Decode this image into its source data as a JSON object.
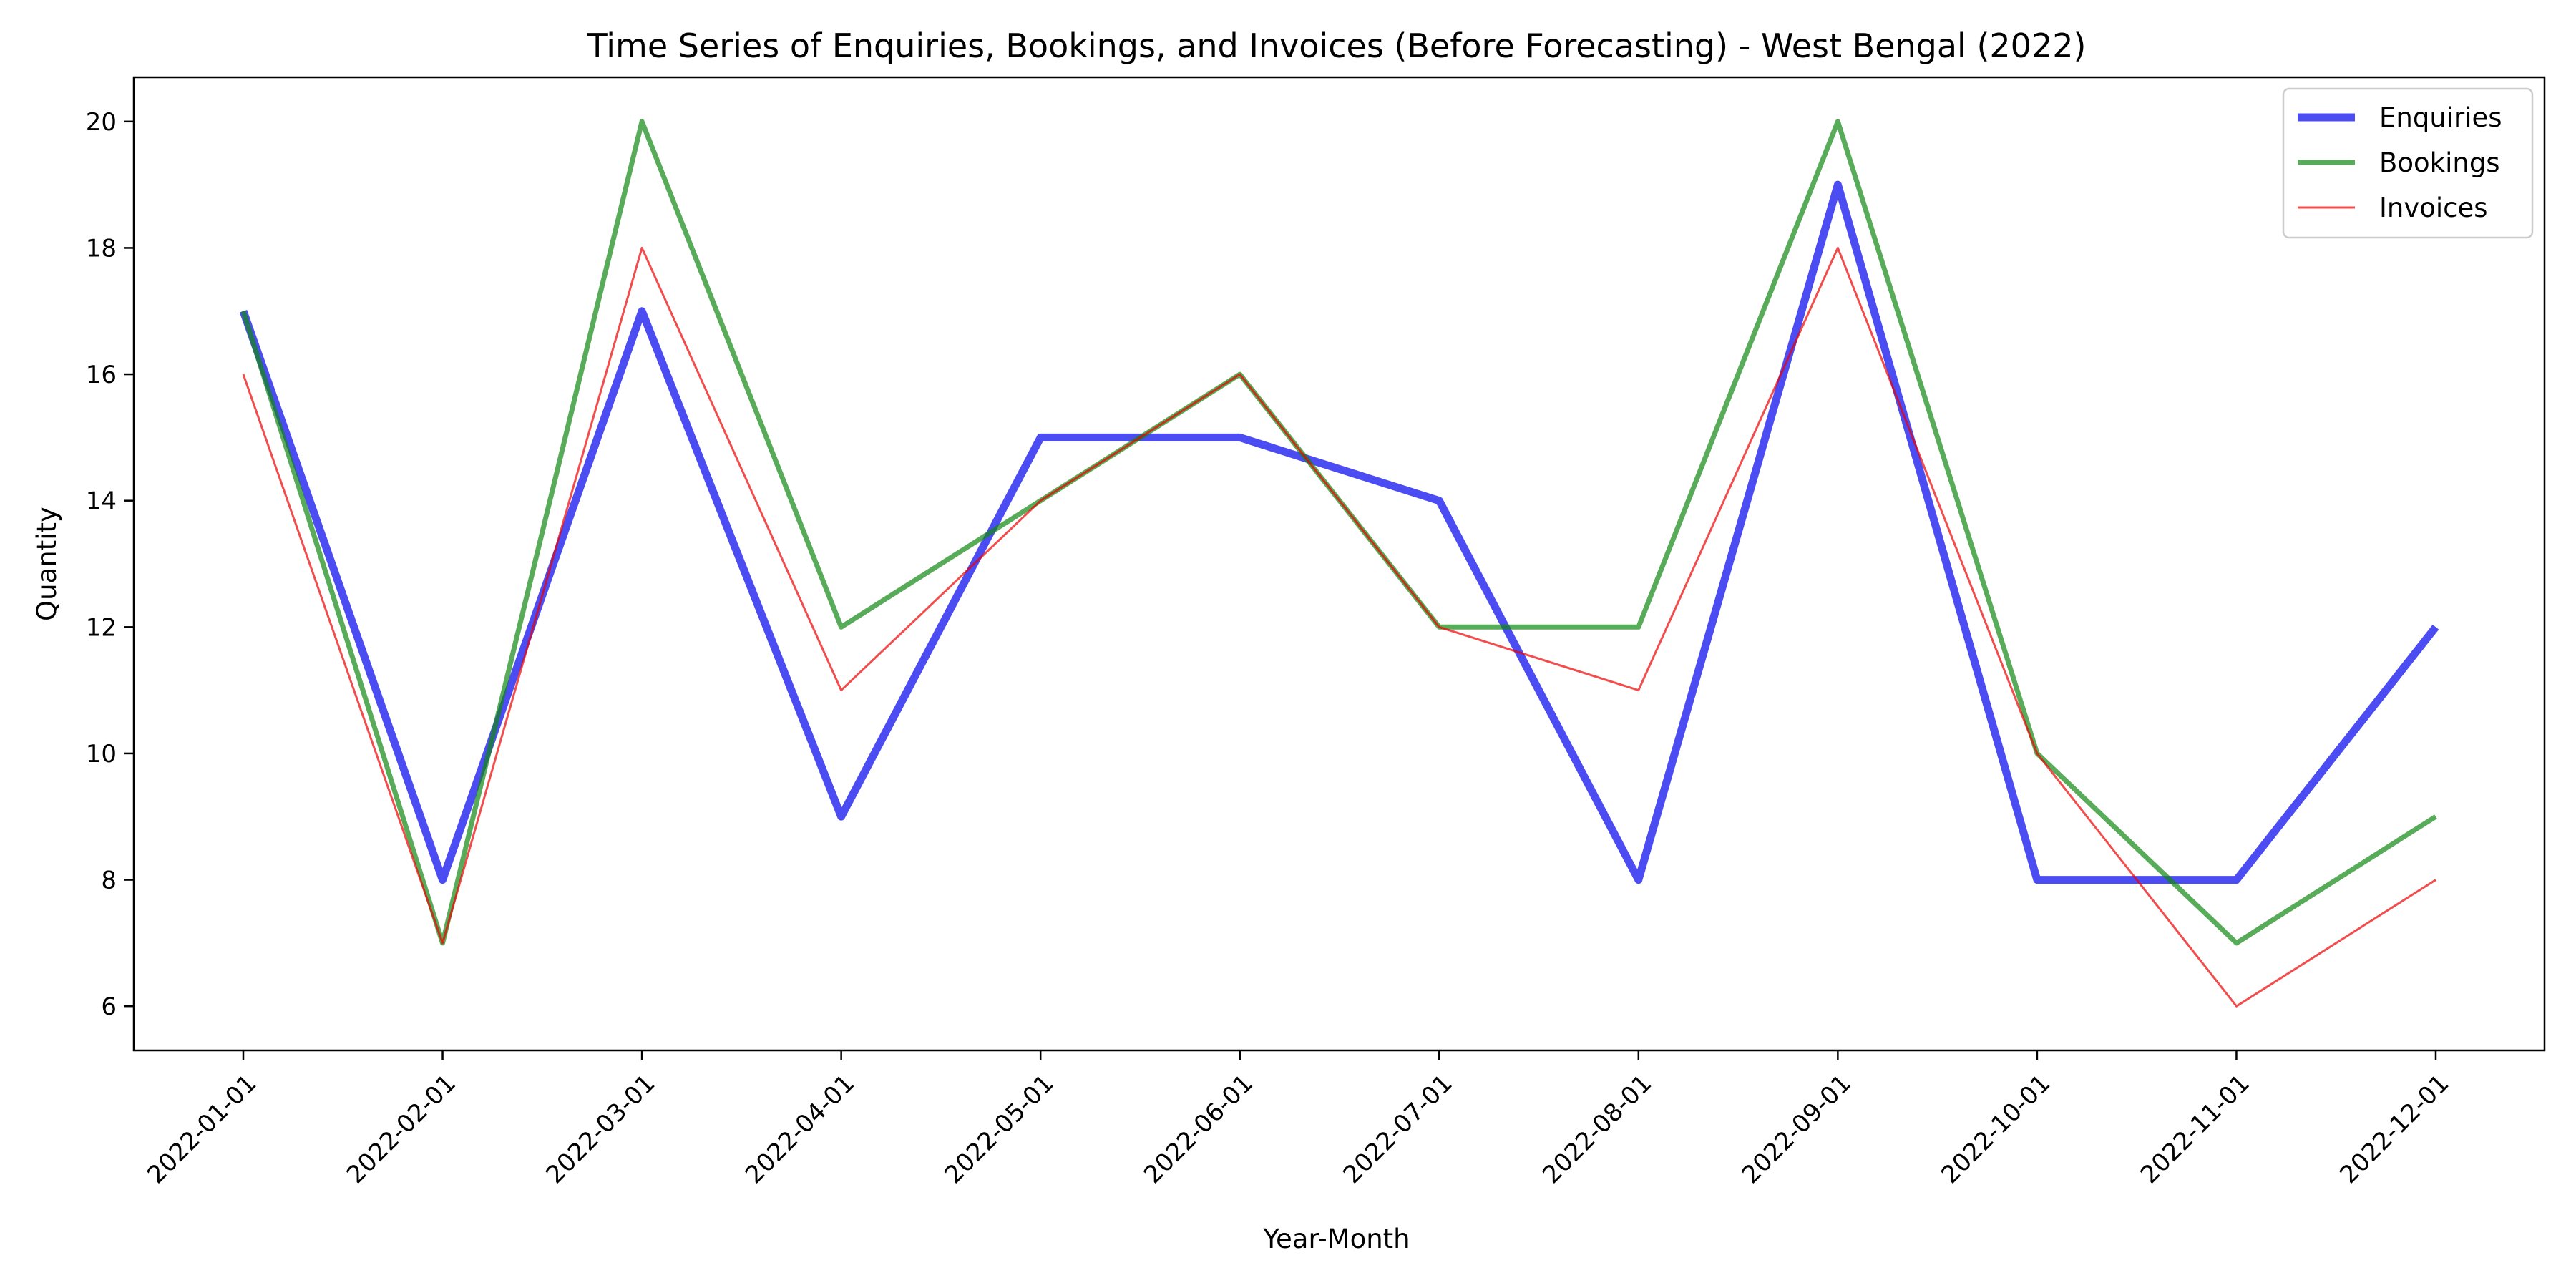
{
  "chart_data": {
    "type": "line",
    "title": "Time Series of Enquiries, Bookings, and Invoices (Before Forecasting) - West Bengal (2022)",
    "xlabel": "Year-Month",
    "ylabel": "Quantity",
    "categories": [
      "2022-01-01",
      "2022-02-01",
      "2022-03-01",
      "2022-04-01",
      "2022-05-01",
      "2022-06-01",
      "2022-07-01",
      "2022-08-01",
      "2022-09-01",
      "2022-10-01",
      "2022-11-01",
      "2022-12-01"
    ],
    "ylim": [
      5.3,
      20.7
    ],
    "yticks": [
      6,
      8,
      10,
      12,
      14,
      16,
      18,
      20
    ],
    "grid": false,
    "legend_position": "top-right",
    "series": [
      {
        "name": "Enquiries",
        "color": "#0000ee",
        "values": [
          17,
          8,
          17,
          9,
          15,
          15,
          14,
          8,
          19,
          8,
          8,
          12
        ]
      },
      {
        "name": "Bookings",
        "color": "#118811",
        "values": [
          17,
          7,
          20,
          12,
          14,
          16,
          12,
          12,
          20,
          10,
          7,
          9
        ]
      },
      {
        "name": "Invoices",
        "color": "#ee0000",
        "values": [
          16,
          7,
          18,
          11,
          14,
          16,
          12,
          11,
          18,
          10,
          6,
          8
        ]
      }
    ]
  }
}
